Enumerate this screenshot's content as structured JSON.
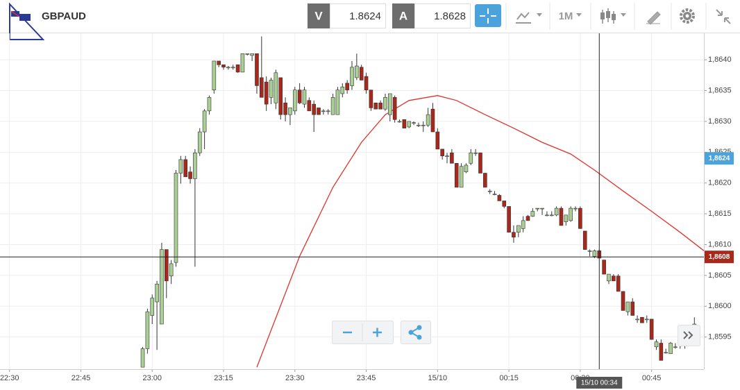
{
  "toolbar": {
    "symbol": "GBPAUD",
    "bid_label": "V",
    "bid": 1.8624,
    "ask_label": "A",
    "ask": 1.8628,
    "timeframe": "1M"
  },
  "chart_data": {
    "type": "candlestick",
    "x": [
      "22:58",
      "22:59",
      "23:00",
      "23:01",
      "23:02",
      "23:03",
      "23:04",
      "23:05",
      "23:06",
      "23:07",
      "23:08",
      "23:09",
      "23:10",
      "23:11",
      "23:12",
      "23:13",
      "23:14",
      "23:15",
      "23:16",
      "23:17",
      "23:18",
      "23:19",
      "23:20",
      "23:21",
      "23:22",
      "23:23",
      "23:24",
      "23:25",
      "23:26",
      "23:27",
      "23:28",
      "23:29",
      "23:30",
      "23:31",
      "23:32",
      "23:33",
      "23:34",
      "23:35",
      "23:36",
      "23:37",
      "23:38",
      "23:39",
      "23:40",
      "23:41",
      "23:42",
      "23:43",
      "23:44",
      "23:45",
      "23:46",
      "23:47",
      "23:48",
      "23:49",
      "23:50",
      "23:51",
      "23:52",
      "23:53",
      "23:54",
      "23:55",
      "23:56",
      "23:57",
      "23:58",
      "23:59",
      "00:00",
      "00:01",
      "00:02",
      "00:03",
      "00:04",
      "00:05",
      "00:06",
      "00:07",
      "00:08",
      "00:09",
      "00:10",
      "00:11",
      "00:12",
      "00:13",
      "00:14",
      "00:15",
      "00:16",
      "00:17",
      "00:18",
      "00:19",
      "00:20",
      "00:21",
      "00:22",
      "00:23",
      "00:24",
      "00:25",
      "00:26",
      "00:27",
      "00:28",
      "00:29",
      "00:30",
      "00:31",
      "00:32",
      "00:33",
      "00:34",
      "00:35",
      "00:36",
      "00:37",
      "00:38",
      "00:39",
      "00:40",
      "00:41",
      "00:42",
      "00:43",
      "00:44",
      "00:45",
      "00:46",
      "00:47",
      "00:48",
      "00:49",
      "00:50",
      "00:51",
      "00:52",
      "00:53",
      "00:54"
    ],
    "open": [
      1.85901,
      1.85931,
      1.85985,
      1.86007,
      1.85971,
      1.86092,
      1.86049,
      1.86071,
      1.86216,
      1.86238,
      1.86218,
      1.86207,
      1.86249,
      1.86283,
      1.86317,
      1.86351,
      1.86398,
      1.86392,
      1.86388,
      1.86388,
      1.86392,
      1.8638,
      1.8641,
      1.86407,
      1.8641,
      1.86371,
      1.86364,
      1.86339,
      1.8633,
      1.86371,
      1.8633,
      1.86311,
      1.86317,
      1.86351,
      1.86328,
      1.86334,
      1.86328,
      1.86322,
      1.86317,
      1.86317,
      1.86311,
      1.86311,
      1.86345,
      1.86362,
      1.86358,
      1.86371,
      1.86388,
      1.86373,
      1.86351,
      1.8633,
      1.8633,
      1.8632,
      1.86311,
      1.86339,
      1.863,
      1.86303,
      1.86291,
      1.86298,
      1.86294,
      1.86294,
      1.86294,
      1.8632,
      1.86283,
      1.86255,
      1.86244,
      1.86249,
      1.86232,
      1.86193,
      1.86218,
      1.86232,
      1.86249,
      1.86249,
      1.86216,
      1.86187,
      1.86182,
      1.8618,
      1.86171,
      1.86162,
      1.8612,
      1.8612,
      1.86126,
      1.86146,
      1.86146,
      1.86159,
      1.86159,
      1.86148,
      1.86148,
      1.86148,
      1.86159,
      1.86137,
      1.86139,
      1.86159,
      1.86159,
      1.86122,
      1.8609,
      1.86081,
      1.8609,
      1.86075,
      1.86041,
      1.86049,
      1.86049,
      1.86024,
      1.85991,
      1.86007,
      1.85979,
      1.85982,
      1.85979,
      1.85979,
      1.85934,
      1.8594,
      1.85925,
      1.85923,
      1.85934,
      1.85938,
      1.85938,
      1.8594,
      1.85946
    ],
    "high": [
      1.85934,
      1.85996,
      1.86019,
      1.86041,
      1.86103,
      1.86092,
      1.86075,
      1.86221,
      1.86244,
      1.86244,
      1.86227,
      1.86255,
      1.86289,
      1.8632,
      1.86342,
      1.86398,
      1.86398,
      1.86392,
      1.8639,
      1.86392,
      1.86392,
      1.8641,
      1.8641,
      1.8641,
      1.8641,
      1.86438,
      1.86373,
      1.86371,
      1.86384,
      1.86371,
      1.86339,
      1.86322,
      1.86356,
      1.86362,
      1.86356,
      1.86339,
      1.86334,
      1.86322,
      1.8632,
      1.8632,
      1.86345,
      1.86356,
      1.86362,
      1.86367,
      1.86398,
      1.8641,
      1.86392,
      1.86379,
      1.86351,
      1.8633,
      1.86334,
      1.86345,
      1.86345,
      1.86342,
      1.86303,
      1.86303,
      1.863,
      1.863,
      1.86298,
      1.863,
      1.86322,
      1.8633,
      1.86289,
      1.86255,
      1.86249,
      1.86255,
      1.86232,
      1.86232,
      1.86232,
      1.86255,
      1.86255,
      1.86249,
      1.86216,
      1.8619,
      1.86187,
      1.86182,
      1.86171,
      1.86162,
      1.86131,
      1.86131,
      1.86146,
      1.86148,
      1.86159,
      1.86159,
      1.86159,
      1.86154,
      1.86154,
      1.86162,
      1.86162,
      1.86148,
      1.86162,
      1.86162,
      1.86162,
      1.86122,
      1.86092,
      1.86092,
      1.86092,
      1.86075,
      1.86052,
      1.86052,
      1.86052,
      1.86024,
      1.86007,
      1.86013,
      1.85985,
      1.85982,
      1.85985,
      1.85979,
      1.85946,
      1.85946,
      1.85931,
      1.85942,
      1.8594,
      1.85942,
      1.85942,
      1.85946,
      1.85982
    ],
    "low": [
      1.85901,
      1.85923,
      1.85971,
      1.85929,
      1.85971,
      1.86013,
      1.86036,
      1.86064,
      1.86199,
      1.8621,
      1.86199,
      1.86064,
      1.86244,
      1.86255,
      1.86311,
      1.86345,
      1.86388,
      1.86384,
      1.86384,
      1.86384,
      1.86379,
      1.8638,
      1.86407,
      1.86398,
      1.86345,
      1.86339,
      1.86317,
      1.86328,
      1.8632,
      1.86303,
      1.863,
      1.86294,
      1.86311,
      1.86328,
      1.86322,
      1.86317,
      1.86283,
      1.86311,
      1.86311,
      1.86311,
      1.86311,
      1.86311,
      1.86339,
      1.86345,
      1.86351,
      1.86367,
      1.86367,
      1.86345,
      1.86317,
      1.8632,
      1.8632,
      1.86317,
      1.863,
      1.86298,
      1.86298,
      1.86289,
      1.86289,
      1.86294,
      1.86291,
      1.86283,
      1.86291,
      1.86283,
      1.86255,
      1.86238,
      1.86232,
      1.86232,
      1.86193,
      1.86193,
      1.86216,
      1.86229,
      1.86244,
      1.86216,
      1.86193,
      1.86182,
      1.8618,
      1.86171,
      1.86159,
      1.8612,
      1.86103,
      1.86112,
      1.8612,
      1.86139,
      1.86145,
      1.86154,
      1.86148,
      1.86146,
      1.86146,
      1.86146,
      1.86131,
      1.86131,
      1.86137,
      1.86154,
      1.86126,
      1.86092,
      1.86081,
      1.86078,
      1.86078,
      1.86052,
      1.86036,
      1.86041,
      1.86024,
      1.85993,
      1.85985,
      1.85985,
      1.85973,
      1.85973,
      1.85973,
      1.85946,
      1.85929,
      1.85912,
      1.85923,
      1.85923,
      1.85931,
      1.85931,
      1.85931,
      1.85938,
      1.85946
    ],
    "close": [
      1.85931,
      1.85991,
      1.86013,
      1.86036,
      1.86092,
      1.86041,
      1.86069,
      1.86216,
      1.86238,
      1.8621,
      1.86207,
      1.86249,
      1.86283,
      1.86317,
      1.86339,
      1.86398,
      1.86392,
      1.86388,
      1.86388,
      1.86388,
      1.8638,
      1.8641,
      1.8641,
      1.8641,
      1.86358,
      1.86339,
      1.86328,
      1.86367,
      1.86379,
      1.86311,
      1.86311,
      1.86322,
      1.86351,
      1.8633,
      1.86351,
      1.86317,
      1.86311,
      1.86311,
      1.86317,
      1.86317,
      1.86339,
      1.86351,
      1.86356,
      1.86351,
      1.86388,
      1.8639,
      1.86367,
      1.86351,
      1.86322,
      1.8632,
      1.8632,
      1.86339,
      1.86345,
      1.86303,
      1.863,
      1.86289,
      1.863,
      1.86298,
      1.86294,
      1.86294,
      1.86311,
      1.86283,
      1.86255,
      1.86244,
      1.86244,
      1.86232,
      1.86193,
      1.86227,
      1.86229,
      1.86249,
      1.86249,
      1.86216,
      1.86193,
      1.86187,
      1.86182,
      1.86171,
      1.86162,
      1.8612,
      1.86112,
      1.86131,
      1.86139,
      1.86139,
      1.86154,
      1.86159,
      1.86159,
      1.86148,
      1.86148,
      1.86159,
      1.86131,
      1.86148,
      1.86159,
      1.86159,
      1.86126,
      1.86092,
      1.8609,
      1.8609,
      1.86078,
      1.86052,
      1.86052,
      1.86041,
      1.86024,
      1.85993,
      1.86007,
      1.85985,
      1.85979,
      1.85973,
      1.85979,
      1.85946,
      1.85942,
      1.85912,
      1.85925,
      1.8594,
      1.85934,
      1.85938,
      1.85938,
      1.85946,
      1.85971
    ],
    "up_color": "#a9cf94",
    "down_color": "#a8281c",
    "wick_color": "#333333",
    "xlim": [
      "22:28",
      "00:56"
    ],
    "xticks": [
      "22:30",
      "22:45",
      "23:00",
      "23:15",
      "23:30",
      "23:45",
      {
        "value": "00:00",
        "label": "15/10"
      },
      "00:15",
      "00:30",
      "00:45"
    ],
    "ylim": [
      1.859,
      1.86443
    ],
    "yticks": [
      {
        "value": 1.8595,
        "label": "1,8595"
      },
      {
        "value": 1.86,
        "label": "1,8600"
      },
      {
        "value": 1.8605,
        "label": "1,8605"
      },
      {
        "value": 1.861,
        "label": "1,8610"
      },
      {
        "value": 1.8615,
        "label": "1,8615"
      },
      {
        "value": 1.862,
        "label": "1,8620"
      },
      {
        "value": 1.8625,
        "label": "1,8625"
      },
      {
        "value": 1.863,
        "label": "1,8630"
      },
      {
        "value": 1.8635,
        "label": "1,8635"
      },
      {
        "value": 1.864,
        "label": "1,8640"
      }
    ],
    "grid": true,
    "moving_average": {
      "color": "#e0312b",
      "x": [
        "23:22",
        "23:31",
        "23:38",
        "23:44",
        "23:49",
        "23:54",
        "00:00",
        "00:04",
        "00:10",
        "00:16",
        "00:22",
        "00:28",
        "00:33",
        "00:39",
        "00:45",
        "00:51",
        "00:56"
      ],
      "values": [
        1.85901,
        1.86081,
        1.86193,
        1.86266,
        1.86311,
        1.86334,
        1.86342,
        1.86334,
        1.86311,
        1.86289,
        1.86266,
        1.86247,
        1.86221,
        1.86187,
        1.86154,
        1.8612,
        1.8609
      ]
    },
    "bid_line": {
      "value": 1.8624,
      "label": "1,8624",
      "color": "#4ba3dc"
    },
    "price_line": {
      "value": 1.8608,
      "label": "1,8608",
      "color": "#a8281c"
    },
    "crosshair": {
      "x": "00:34",
      "label": "15/10 00:34"
    }
  }
}
